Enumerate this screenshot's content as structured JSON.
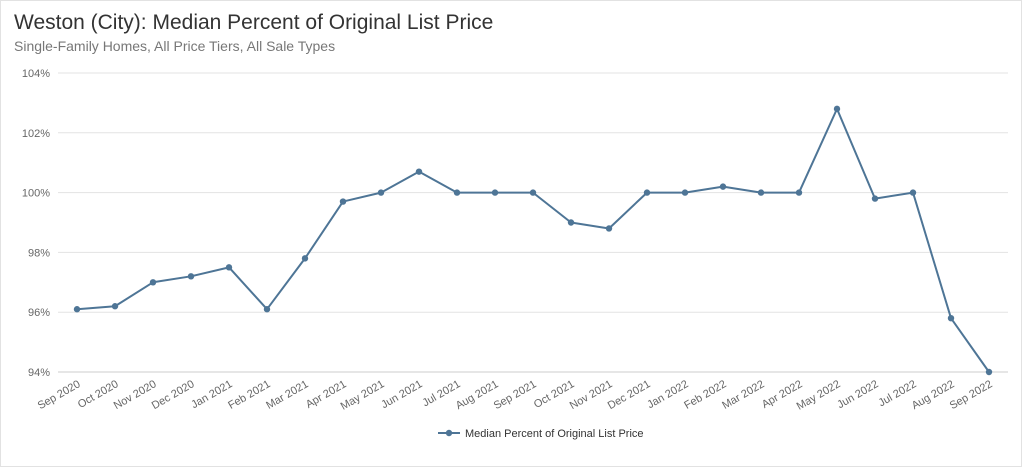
{
  "chart_data": {
    "type": "line",
    "title": "Weston (City): Median Percent of Original List Price",
    "subtitle": "Single-Family Homes, All Price Tiers, All Sale Types",
    "categories": [
      "Sep 2020",
      "Oct 2020",
      "Nov 2020",
      "Dec 2020",
      "Jan 2021",
      "Feb 2021",
      "Mar 2021",
      "Apr 2021",
      "May 2021",
      "Jun 2021",
      "Jul 2021",
      "Aug 2021",
      "Sep 2021",
      "Oct 2021",
      "Nov 2021",
      "Dec 2021",
      "Jan 2022",
      "Feb 2022",
      "Mar 2022",
      "Apr 2022",
      "May 2022",
      "Jun 2022",
      "Jul 2022",
      "Aug 2022",
      "Sep 2022"
    ],
    "series": [
      {
        "name": "Median Percent of Original List Price",
        "values": [
          96.1,
          96.2,
          97.0,
          97.2,
          97.5,
          96.1,
          97.8,
          99.7,
          100.0,
          100.7,
          100.0,
          100.0,
          100.0,
          99.0,
          98.8,
          100.0,
          100.0,
          100.2,
          100.0,
          100.0,
          102.8,
          99.8,
          100.0,
          95.8,
          94.0
        ]
      }
    ],
    "yticks": [
      "94%",
      "96%",
      "98%",
      "100%",
      "102%",
      "104%"
    ],
    "ylim": [
      94,
      104
    ],
    "xlabel": "",
    "ylabel": "",
    "grid": true,
    "legend_position": "bottom-center",
    "colors": {
      "line": "#4e7596",
      "grid": "#e3e3e3",
      "axis": "#cccccc"
    }
  }
}
